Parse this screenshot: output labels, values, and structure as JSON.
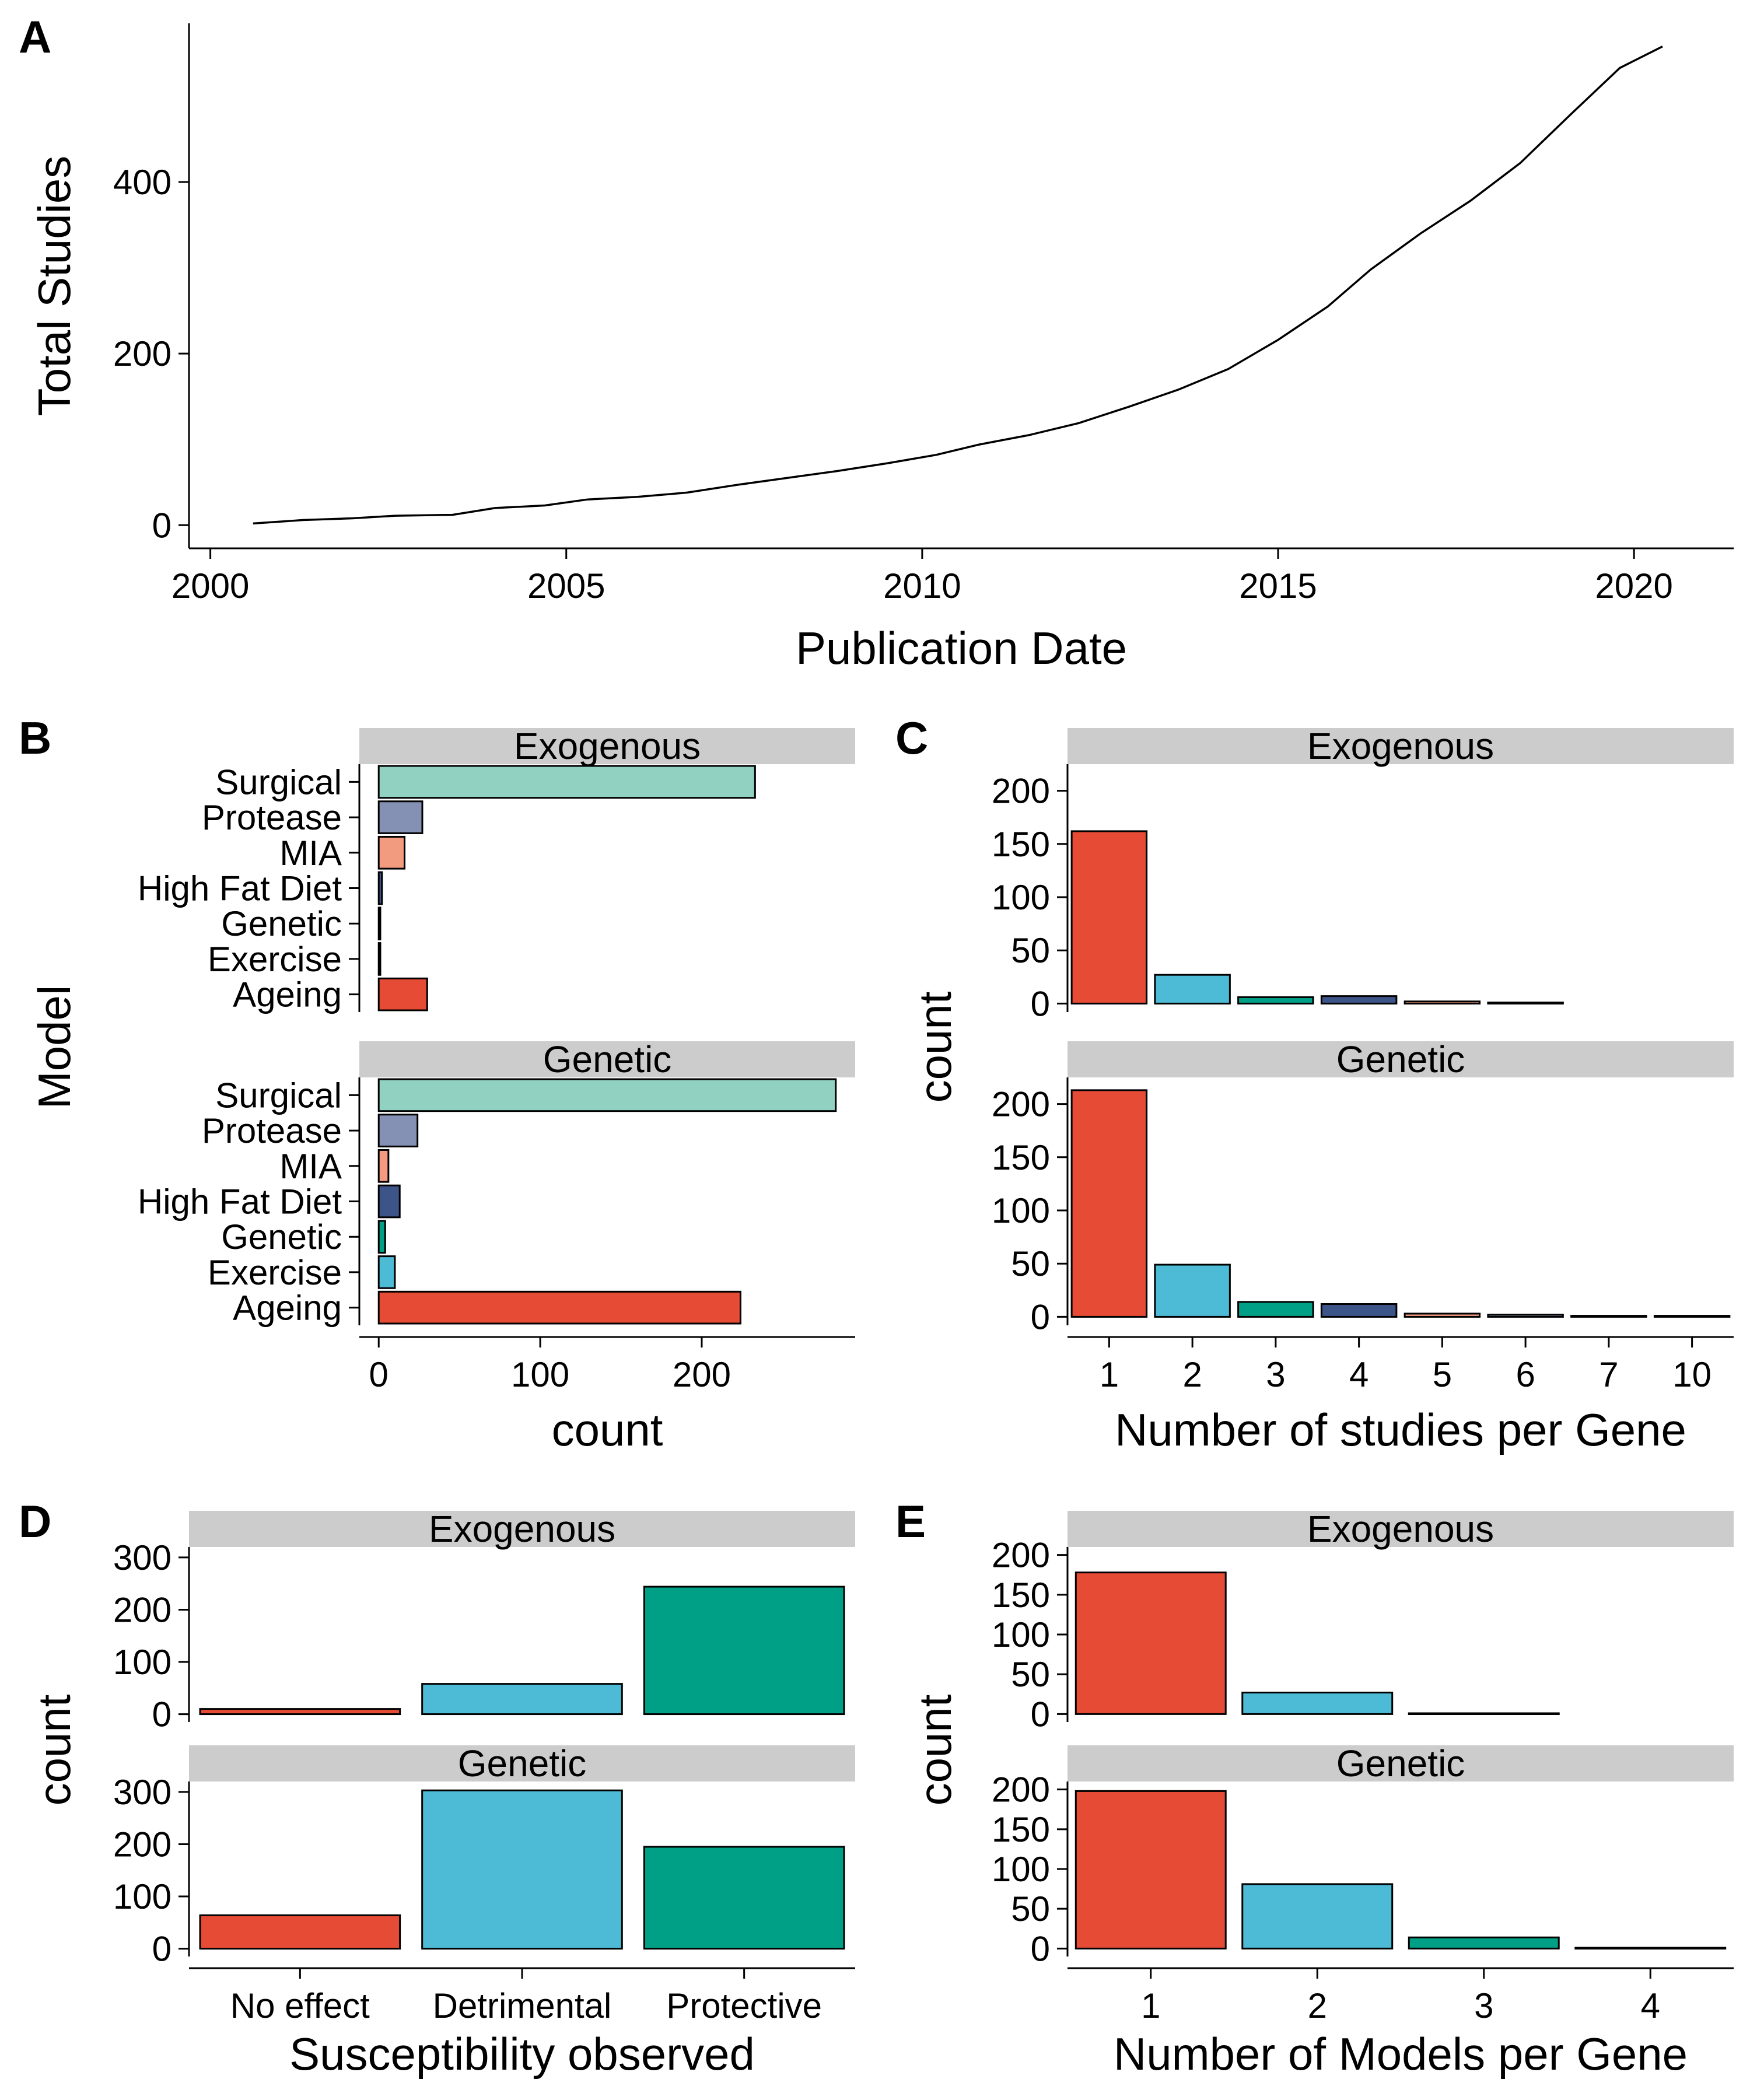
{
  "panel_letters": {
    "A": "A",
    "B": "B",
    "C": "C",
    "D": "D",
    "E": "E"
  },
  "colors": {
    "strip_bg": "#cccccc",
    "red": "#E64B35",
    "cyan": "#4DBBD5",
    "teal": "#00A087",
    "navy": "#3C5488",
    "salmon": "#F39B7F",
    "lavender": "#8491B4",
    "mint": "#91D1C2"
  },
  "chart_data": [
    {
      "panel": "A",
      "type": "line",
      "xlabel": "Publication Date",
      "ylabel": "Total Studies",
      "xlim": [
        1999.7,
        2021.4
      ],
      "ylim": [
        -27,
        585
      ],
      "xticks": [
        2000,
        2005,
        2010,
        2015,
        2020
      ],
      "yticks": [
        0,
        200,
        400
      ],
      "x": [
        2000.6,
        2001.3,
        2002.0,
        2002.6,
        2003.4,
        2004.0,
        2004.7,
        2005.3,
        2006.0,
        2006.7,
        2007.4,
        2008.1,
        2008.8,
        2009.5,
        2010.2,
        2010.8,
        2011.5,
        2012.2,
        2012.9,
        2013.6,
        2014.3,
        2015.0,
        2015.7,
        2016.3,
        2017.0,
        2017.7,
        2018.4,
        2019.1,
        2019.8,
        2020.4
      ],
      "y": [
        2,
        6,
        8,
        11,
        12,
        20,
        23,
        30,
        33,
        38,
        47,
        55,
        63,
        72,
        82,
        94,
        105,
        119,
        138,
        158,
        182,
        216,
        255,
        298,
        340,
        378,
        422,
        478,
        533,
        558
      ],
      "grid": false
    },
    {
      "panel": "B",
      "type": "bar",
      "orientation": "horizontal",
      "xlabel": "count",
      "ylabel": "Model",
      "xlim": [
        -12,
        295
      ],
      "xticks": [
        0,
        100,
        200
      ],
      "categories": [
        "Surgical",
        "Protease",
        "MIA",
        "High Fat Diet",
        "Genetic",
        "Exercise",
        "Ageing"
      ],
      "facets": [
        {
          "name": "Exogenous",
          "values": [
            233,
            27,
            16,
            2,
            1,
            1,
            30
          ]
        },
        {
          "name": "Genetic",
          "values": [
            283,
            24,
            6,
            13,
            4,
            10,
            224
          ]
        }
      ]
    },
    {
      "panel": "C",
      "type": "bar",
      "xlabel": "Number of studies per Gene",
      "ylabel": "count",
      "ylim": [
        -8,
        225
      ],
      "yticks": [
        0,
        50,
        100,
        150,
        200
      ],
      "facets": [
        {
          "name": "Exogenous",
          "categories": [
            "1",
            "2",
            "3",
            "4",
            "5",
            "6"
          ],
          "values": [
            162,
            27,
            6,
            7,
            2,
            1
          ]
        },
        {
          "name": "Genetic",
          "categories": [
            "1",
            "2",
            "3",
            "4",
            "5",
            "6",
            "7",
            "10"
          ],
          "values": [
            213,
            49,
            14,
            12,
            3,
            2,
            1,
            1
          ]
        }
      ],
      "xtick_labels": [
        "1",
        "2",
        "3",
        "4",
        "5",
        "6",
        "7",
        "10"
      ]
    },
    {
      "panel": "D",
      "type": "bar",
      "xlabel": "Susceptibility observed",
      "ylabel": "count",
      "ylim": [
        -15,
        320
      ],
      "yticks": [
        0,
        100,
        200,
        300
      ],
      "categories": [
        "No effect",
        "Detrimental",
        "Protective"
      ],
      "facets": [
        {
          "name": "Exogenous",
          "values": [
            10,
            58,
            244
          ]
        },
        {
          "name": "Genetic",
          "values": [
            64,
            303,
            195
          ]
        }
      ]
    },
    {
      "panel": "E",
      "type": "bar",
      "xlabel": "Number of Models per Gene",
      "ylabel": "count",
      "ylim": [
        -10,
        210
      ],
      "yticks": [
        0,
        50,
        100,
        150,
        200
      ],
      "categories": [
        "1",
        "2",
        "3",
        "4"
      ],
      "facets": [
        {
          "name": "Exogenous",
          "values": [
            178,
            27,
            1,
            0
          ]
        },
        {
          "name": "Genetic",
          "values": [
            198,
            81,
            14,
            1
          ]
        }
      ]
    }
  ]
}
